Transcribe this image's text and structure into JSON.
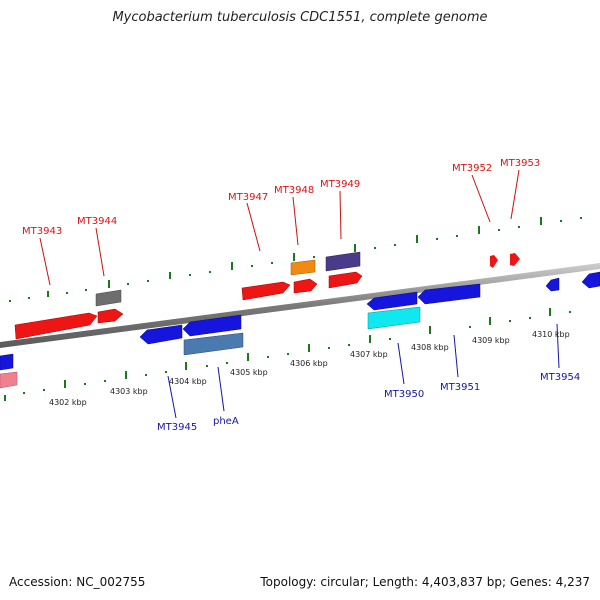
{
  "title": "Mycobacterium tuberculosis CDC1551, complete genome",
  "footer": {
    "accession": "Accession: NC_002755",
    "summary": "Topology: circular; Length: 4,403,837 bp; Genes: 4,237"
  },
  "colors": {
    "backbone": "#8a8a8a",
    "tick": "#1a7a1a",
    "forward_label": "#dd1111",
    "reverse_label": "#1515aa"
  },
  "scale_labels": [
    "4302 kbp",
    "4303 kbp",
    "4304 kbp",
    "4305 kbp",
    "4306 kbp",
    "4307 kbp",
    "4308 kbp",
    "4309 kbp",
    "4310 kbp"
  ],
  "gene_labels": [
    {
      "text": "MT3943",
      "strand": "forward"
    },
    {
      "text": "MT3944",
      "strand": "forward"
    },
    {
      "text": "MT3947",
      "strand": "forward"
    },
    {
      "text": "MT3948",
      "strand": "forward"
    },
    {
      "text": "MT3949",
      "strand": "forward"
    },
    {
      "text": "MT3952",
      "strand": "forward"
    },
    {
      "text": "MT3953",
      "strand": "forward"
    },
    {
      "text": "MT3945",
      "strand": "reverse"
    },
    {
      "text": "pheA",
      "strand": "reverse"
    },
    {
      "text": "MT3950",
      "strand": "reverse"
    },
    {
      "text": "MT3951",
      "strand": "reverse"
    },
    {
      "text": "MT3954",
      "strand": "reverse"
    }
  ]
}
